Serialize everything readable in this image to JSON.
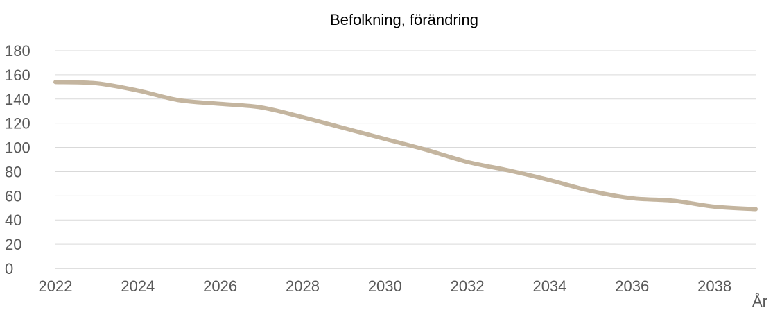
{
  "chart_data": {
    "type": "line",
    "title": "Befolkning, förändring",
    "xlabel": "År",
    "ylabel": "",
    "x": [
      2022,
      2023,
      2024,
      2025,
      2026,
      2027,
      2028,
      2029,
      2030,
      2031,
      2032,
      2033,
      2034,
      2035,
      2036,
      2037,
      2038,
      2039
    ],
    "series": [
      {
        "values": [
          154,
          153,
          147,
          139,
          136,
          133,
          125,
          116,
          107,
          98,
          88,
          81,
          73,
          64,
          58,
          56,
          51,
          49
        ],
        "color": "#c4b59f"
      }
    ],
    "ylim": [
      0,
      180
    ],
    "yticks": [
      0,
      20,
      40,
      60,
      80,
      100,
      120,
      140,
      160,
      180
    ],
    "xlim": [
      2022,
      2039
    ],
    "xticks": [
      "2022",
      "2024",
      "2026",
      "2028",
      "2030",
      "2032",
      "2034",
      "2036",
      "2038"
    ],
    "grid": true,
    "legend": "none"
  }
}
